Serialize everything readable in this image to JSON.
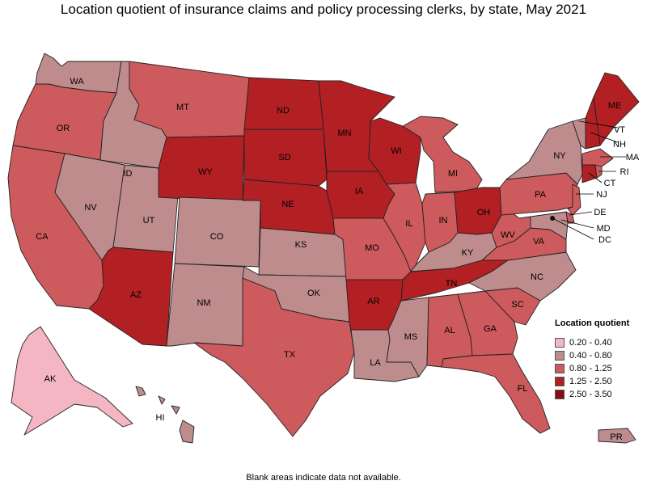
{
  "title": "Location quotient of insurance claims and policy processing clerks, by state, May 2021",
  "footnote": "Blank areas indicate data not available.",
  "colors": {
    "c1": "#f4b6c2",
    "c2": "#bf8c8e",
    "c3": "#cd5a5c",
    "c4": "#b22024",
    "c5": "#8a0b10"
  },
  "legend": {
    "title": "Location quotient",
    "items": [
      {
        "label": "0.20 - 0.40",
        "color_key": "c1"
      },
      {
        "label": "0.40 - 0.80",
        "color_key": "c2"
      },
      {
        "label": "0.80 - 1.25",
        "color_key": "c3"
      },
      {
        "label": "1.25 - 2.50",
        "color_key": "c4"
      },
      {
        "label": "2.50 - 3.50",
        "color_key": "c5"
      }
    ]
  },
  "states": {
    "WA": {
      "label": "WA",
      "class": "c2"
    },
    "OR": {
      "label": "OR",
      "class": "c3"
    },
    "CA": {
      "label": "CA",
      "class": "c3"
    },
    "ID": {
      "label": "ID",
      "class": "c2"
    },
    "NV": {
      "label": "NV",
      "class": "c2"
    },
    "UT": {
      "label": "UT",
      "class": "c2"
    },
    "AZ": {
      "label": "AZ",
      "class": "c4"
    },
    "MT": {
      "label": "MT",
      "class": "c3"
    },
    "WY": {
      "label": "WY",
      "class": "c4"
    },
    "CO": {
      "label": "CO",
      "class": "c2"
    },
    "NM": {
      "label": "NM",
      "class": "c2"
    },
    "ND": {
      "label": "ND",
      "class": "c4"
    },
    "SD": {
      "label": "SD",
      "class": "c4"
    },
    "NE": {
      "label": "NE",
      "class": "c4"
    },
    "KS": {
      "label": "KS",
      "class": "c2"
    },
    "OK": {
      "label": "OK",
      "class": "c2"
    },
    "TX": {
      "label": "TX",
      "class": "c3"
    },
    "MN": {
      "label": "MN",
      "class": "c4"
    },
    "IA": {
      "label": "IA",
      "class": "c4"
    },
    "MO": {
      "label": "MO",
      "class": "c3"
    },
    "AR": {
      "label": "AR",
      "class": "c4"
    },
    "LA": {
      "label": "LA",
      "class": "c2"
    },
    "WI": {
      "label": "WI",
      "class": "c4"
    },
    "IL": {
      "label": "IL",
      "class": "c3"
    },
    "MI": {
      "label": "MI",
      "class": "c3"
    },
    "IN": {
      "label": "IN",
      "class": "c3"
    },
    "OH": {
      "label": "OH",
      "class": "c4"
    },
    "KY": {
      "label": "KY",
      "class": "c2"
    },
    "TN": {
      "label": "TN",
      "class": "c4"
    },
    "MS": {
      "label": "MS",
      "class": "c2"
    },
    "AL": {
      "label": "AL",
      "class": "c3"
    },
    "GA": {
      "label": "GA",
      "class": "c3"
    },
    "FL": {
      "label": "FL",
      "class": "c3"
    },
    "SC": {
      "label": "SC",
      "class": "c3"
    },
    "NC": {
      "label": "NC",
      "class": "c2"
    },
    "VA": {
      "label": "VA",
      "class": "c3"
    },
    "WV": {
      "label": "WV",
      "class": "c3"
    },
    "PA": {
      "label": "PA",
      "class": "c3"
    },
    "NY": {
      "label": "NY",
      "class": "c2"
    },
    "VT": {
      "label": "VT",
      "class": "c2"
    },
    "NH": {
      "label": "NH",
      "class": "c4"
    },
    "ME": {
      "label": "ME",
      "class": "c4"
    },
    "MA": {
      "label": "MA",
      "class": "c3"
    },
    "RI": {
      "label": "RI",
      "class": "c3"
    },
    "CT": {
      "label": "CT",
      "class": "c4"
    },
    "NJ": {
      "label": "NJ",
      "class": "c3"
    },
    "DE": {
      "label": "DE",
      "class": "c3"
    },
    "MD": {
      "label": "MD",
      "class": "c2"
    },
    "DC": {
      "label": "DC",
      "class": "c2"
    },
    "AK": {
      "label": "AK",
      "class": "c1"
    },
    "HI": {
      "label": "HI",
      "class": "c2"
    },
    "PR": {
      "label": "PR",
      "class": "c2"
    }
  }
}
